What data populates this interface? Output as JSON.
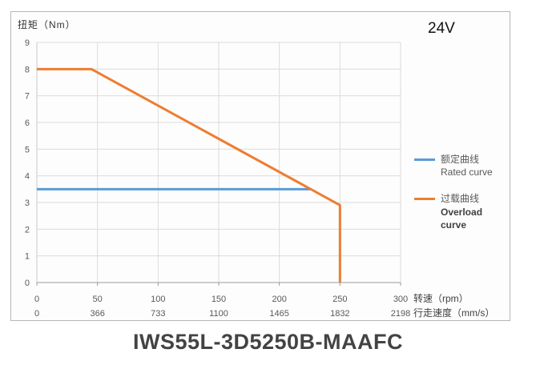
{
  "page": {
    "model_title": "IWS55L-3D5250B-MAAFC",
    "voltage_label": "24V"
  },
  "chart_data": {
    "type": "line",
    "title": "",
    "ylabel": "扭矩（Nm）",
    "xlabel_rpm": "转速（rpm）",
    "xlabel_speed": "行走速度（mm/s）",
    "xlim": [
      0,
      300
    ],
    "ylim": [
      0,
      9
    ],
    "grid": true,
    "legend_position": "right",
    "y_ticks": [
      0,
      1,
      2,
      3,
      4,
      5,
      6,
      7,
      8,
      9
    ],
    "x_ticks_rpm": [
      0,
      50,
      100,
      150,
      200,
      250,
      300
    ],
    "x_ticks_speed": [
      0,
      366,
      733,
      1100,
      1465,
      1832,
      2198
    ],
    "series": [
      {
        "id": "rated",
        "name_cn": "额定曲线",
        "name_en": "Rated curve",
        "color": "#5B9BD5",
        "points": [
          [
            0,
            3.5
          ],
          [
            226,
            3.5
          ]
        ]
      },
      {
        "id": "overload",
        "name_cn": "过载曲线",
        "name_en": "Overload curve",
        "color": "#ED7D31",
        "points": [
          [
            0,
            8
          ],
          [
            45,
            8
          ],
          [
            250,
            2.9
          ],
          [
            250,
            0
          ]
        ]
      }
    ]
  }
}
